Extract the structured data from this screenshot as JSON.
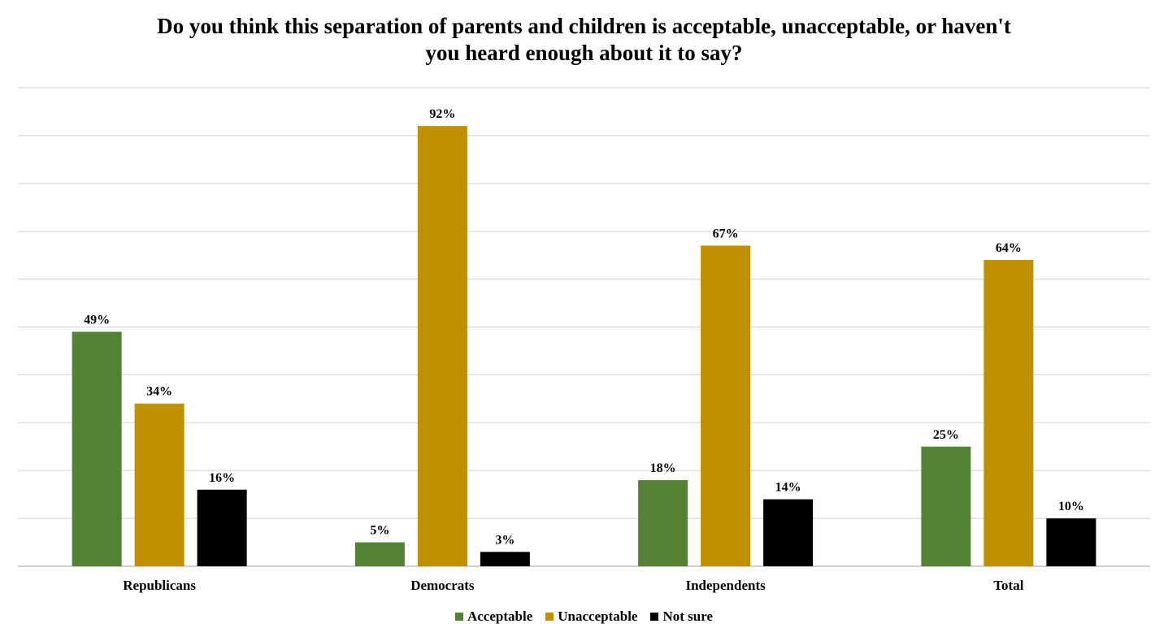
{
  "chart_data": {
    "type": "bar",
    "title": "Do you think this separation of parents and children is acceptable, unacceptable, or haven't\nyou heard enough about it to say?",
    "categories": [
      "Republicans",
      "Democrats",
      "Independents",
      "Total"
    ],
    "series": [
      {
        "name": "Acceptable",
        "color": "#548235",
        "values": [
          49,
          5,
          18,
          25
        ],
        "labels": [
          "49%",
          "5%",
          "18%",
          "25%"
        ]
      },
      {
        "name": "Unacceptable",
        "color": "#BF9000",
        "values": [
          34,
          92,
          67,
          64
        ],
        "labels": [
          "34%",
          "92%",
          "67%",
          "64%"
        ]
      },
      {
        "name": "Not sure",
        "color": "#000000",
        "values": [
          16,
          3,
          14,
          10
        ],
        "labels": [
          "16%",
          "3%",
          "14%",
          "10%"
        ]
      }
    ],
    "xlabel": "",
    "ylabel": "",
    "ylim": [
      0,
      100
    ],
    "grid": true,
    "legend_position": "bottom"
  }
}
